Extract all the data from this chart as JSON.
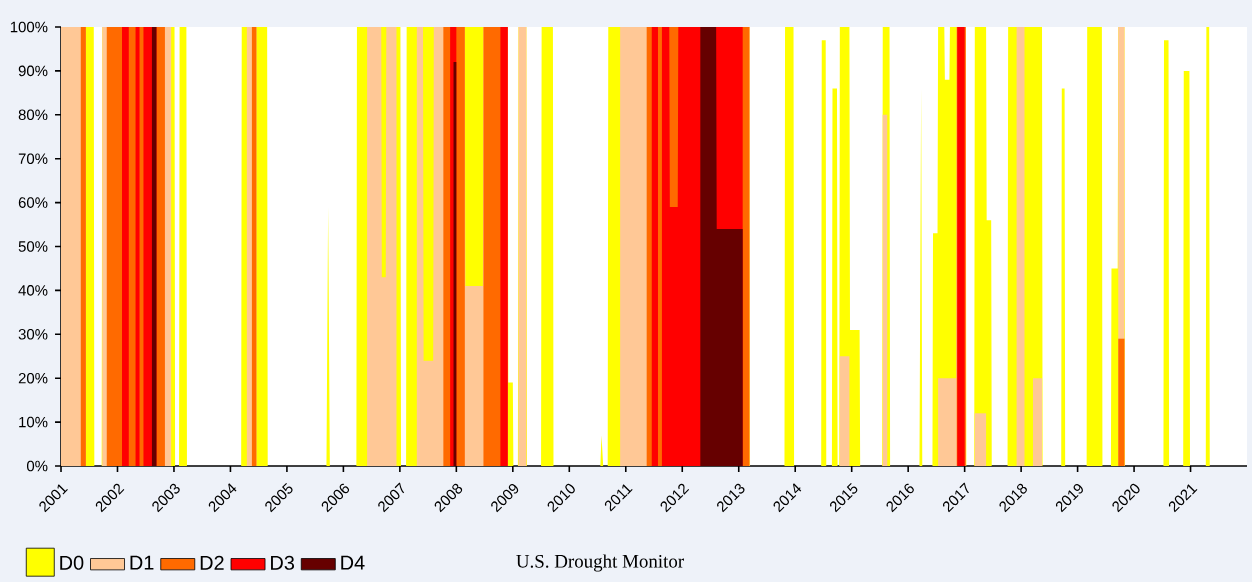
{
  "chart_data": {
    "type": "area",
    "stacked": false,
    "annotations": [
      "U.S. Drought Monitor"
    ],
    "legend": "bottom left",
    "xlim": [
      2001,
      2022
    ],
    "xticks": [
      2001,
      2002,
      2003,
      2004,
      2005,
      2006,
      2007,
      2008,
      2009,
      2010,
      2011,
      2012,
      2013,
      2014,
      2015,
      2016,
      2017,
      2018,
      2019,
      2020,
      2021
    ],
    "ylim": [
      0,
      100
    ],
    "yticks": [
      {
        "value": 0,
        "label": "0%"
      },
      {
        "value": 10,
        "label": "10%"
      },
      {
        "value": 20,
        "label": "20%"
      },
      {
        "value": 30,
        "label": "30%"
      },
      {
        "value": 40,
        "label": "40%"
      },
      {
        "value": 50,
        "label": "50%"
      },
      {
        "value": 60,
        "label": "60%"
      },
      {
        "value": 70,
        "label": "70%"
      },
      {
        "value": 80,
        "label": "80%"
      },
      {
        "value": 90,
        "label": "90%"
      },
      {
        "value": 100,
        "label": "100%"
      }
    ],
    "series": [
      {
        "name": "D0",
        "color": "#ffff00",
        "x": [
          2001.0,
          2001.58,
          2001.59,
          2001.72,
          2001.73,
          2003.01,
          2003.02,
          2003.09,
          2003.1,
          2003.22,
          2003.23,
          2004.19,
          2004.2,
          2004.65,
          2004.66,
          2005.7,
          2005.73,
          2005.76,
          2006.23,
          2006.24,
          2007.01,
          2007.02,
          2007.11,
          2007.12,
          2008.91,
          2008.92,
          2009.0,
          2009.01,
          2009.09,
          2009.1,
          2009.24,
          2009.25,
          2009.5,
          2009.51,
          2009.71,
          2009.72,
          2010.55,
          2010.57,
          2010.6,
          2010.68,
          2010.69,
          2013.19,
          2013.2,
          2013.81,
          2013.82,
          2013.97,
          2013.98,
          2014.46,
          2014.47,
          2014.54,
          2014.55,
          2014.65,
          2014.66,
          2014.74,
          2014.75,
          2014.78,
          2014.79,
          2014.96,
          2014.97,
          2015.14,
          2015.15,
          2015.54,
          2015.55,
          2015.67,
          2015.68,
          2016.2,
          2016.23,
          2016.25,
          2016.43,
          2016.44,
          2016.52,
          2016.53,
          2016.64,
          2016.65,
          2016.73,
          2016.74,
          2017.02,
          2017.03,
          2017.17,
          2017.18,
          2017.38,
          2017.39,
          2017.47,
          2017.48,
          2017.76,
          2017.77,
          2018.37,
          2018.38,
          2018.71,
          2018.72,
          2018.77,
          2018.78,
          2019.16,
          2019.17,
          2019.43,
          2019.44,
          2019.59,
          2019.6,
          2019.71,
          2019.72,
          2019.83,
          2019.84,
          2020.52,
          2020.53,
          2020.61,
          2020.62,
          2020.87,
          2020.88,
          2020.98,
          2020.99,
          2021.27,
          2021.28,
          2021.33,
          2021.34,
          2021.99
        ],
        "values": [
          100,
          100,
          0,
          0,
          100,
          100,
          0,
          0,
          100,
          100,
          0,
          0,
          100,
          100,
          0,
          0,
          59,
          0,
          0,
          100,
          100,
          0,
          0,
          100,
          100,
          19,
          19,
          0,
          0,
          100,
          100,
          0,
          0,
          100,
          100,
          0,
          0,
          7,
          0,
          0,
          100,
          100,
          0,
          0,
          100,
          100,
          0,
          0,
          97,
          97,
          0,
          0,
          86,
          86,
          0,
          0,
          100,
          100,
          31,
          31,
          0,
          0,
          100,
          100,
          0,
          0,
          86,
          0,
          0,
          53,
          53,
          100,
          100,
          88,
          88,
          100,
          100,
          0,
          0,
          100,
          100,
          56,
          56,
          0,
          0,
          100,
          100,
          0,
          0,
          86,
          86,
          0,
          0,
          100,
          100,
          0,
          0,
          45,
          45,
          100,
          100,
          0,
          0,
          97,
          97,
          0,
          0,
          90,
          90,
          0,
          0,
          100,
          100,
          0,
          0
        ]
      },
      {
        "name": "D1",
        "color": "#ffc896",
        "x": [
          2001.0,
          2001.44,
          2001.45,
          2001.72,
          2001.73,
          2002.95,
          2002.96,
          2004.28,
          2004.29,
          2004.46,
          2004.47,
          2006.41,
          2006.42,
          2006.67,
          2006.68,
          2006.75,
          2006.76,
          2006.94,
          2006.95,
          2007.29,
          2007.3,
          2007.41,
          2007.42,
          2007.59,
          2007.6,
          2008.15,
          2008.16,
          2008.47,
          2008.48,
          2008.91,
          2008.92,
          2009.09,
          2009.1,
          2009.24,
          2009.25,
          2010.89,
          2010.9,
          2013.19,
          2013.2,
          2014.78,
          2014.79,
          2014.96,
          2014.97,
          2015.54,
          2015.55,
          2015.63,
          2015.64,
          2016.52,
          2016.53,
          2016.85,
          2016.86,
          2017.02,
          2017.03,
          2017.17,
          2017.18,
          2017.38,
          2017.39,
          2017.91,
          2017.92,
          2018.06,
          2018.07,
          2018.2,
          2018.21,
          2018.37,
          2018.38,
          2019.71,
          2019.72,
          2019.83
        ],
        "values": [
          100,
          100,
          null,
          null,
          100,
          100,
          null,
          null,
          100,
          100,
          null,
          null,
          100,
          100,
          43,
          43,
          100,
          100,
          null,
          null,
          100,
          100,
          24,
          24,
          100,
          100,
          41,
          41,
          100,
          100,
          null,
          null,
          100,
          100,
          null,
          null,
          100,
          100,
          null,
          null,
          25,
          25,
          null,
          null,
          80,
          80,
          null,
          null,
          20,
          20,
          100,
          100,
          null,
          null,
          12,
          12,
          null,
          null,
          100,
          100,
          null,
          null,
          20,
          20,
          null,
          null,
          100,
          100
        ]
      },
      {
        "name": "D2",
        "color": "#ff6a00",
        "x": [
          2001.35,
          2001.44,
          2001.45,
          2001.8,
          2001.81,
          2002.84,
          2002.85,
          2004.37,
          2004.38,
          2004.46,
          2004.47,
          2007.76,
          2007.77,
          2008.15,
          2008.16,
          2008.47,
          2008.48,
          2008.91,
          2008.92,
          2011.36,
          2011.37,
          2013.19,
          2013.2,
          2016.85,
          2016.86,
          2017.02,
          2017.03,
          2019.71,
          2019.72,
          2019.83
        ],
        "values": [
          100,
          100,
          null,
          null,
          100,
          100,
          null,
          null,
          100,
          100,
          null,
          null,
          100,
          100,
          null,
          null,
          100,
          100,
          null,
          null,
          100,
          100,
          null,
          null,
          100,
          100,
          null,
          null,
          29,
          29
        ]
      },
      {
        "name": "D3",
        "color": "#ff0000",
        "x": [
          2002.08,
          2002.2,
          2002.21,
          2002.31,
          2002.32,
          2002.39,
          2002.4,
          2002.45,
          2002.46,
          2002.69,
          2002.7,
          2007.88,
          2007.89,
          2008.0,
          2008.01,
          2008.77,
          2008.78,
          2008.91,
          2008.92,
          2011.45,
          2011.46,
          2011.57,
          2011.58,
          2011.63,
          2011.64,
          2011.77,
          2011.78,
          2011.92,
          2011.93,
          2013.07,
          2013.08,
          2016.86,
          2016.87,
          2017.0
        ],
        "values": [
          100,
          100,
          null,
          null,
          100,
          100,
          null,
          null,
          100,
          100,
          null,
          null,
          100,
          100,
          null,
          null,
          100,
          100,
          null,
          null,
          100,
          100,
          null,
          null,
          100,
          100,
          59,
          59,
          100,
          100,
          null,
          null,
          100,
          100
        ]
      },
      {
        "name": "D4",
        "color": "#660000",
        "x": [
          2002.61,
          2002.69,
          2002.7,
          2007.94,
          2007.95,
          2008.0,
          2008.01,
          2012.31,
          2012.32,
          2012.6,
          2012.61,
          2013.07
        ],
        "values": [
          100,
          100,
          null,
          null,
          92,
          92,
          null,
          null,
          100,
          100,
          54,
          54
        ]
      }
    ]
  }
}
